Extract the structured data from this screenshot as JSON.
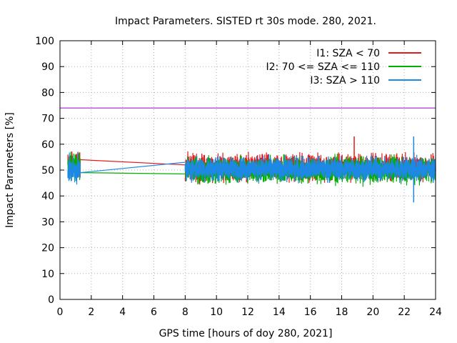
{
  "chart_data": {
    "type": "line",
    "title": "Impact Parameters. SISTED rt 30s mode. 280, 2021.",
    "xlabel": "GPS time [hours of doy 280, 2021]",
    "ylabel": "Impact Parameters [%]",
    "xlim": [
      0,
      24
    ],
    "ylim": [
      0,
      100
    ],
    "xticks": [
      0,
      2,
      4,
      6,
      8,
      10,
      12,
      14,
      16,
      18,
      20,
      22,
      24
    ],
    "yticks": [
      0,
      10,
      20,
      30,
      40,
      50,
      60,
      70,
      80,
      90,
      100
    ],
    "legend_position": "top-right",
    "reference_line": {
      "y": 74,
      "color": "#9400d3"
    },
    "series": [
      {
        "name": "I1: SZA < 70",
        "color": "#e41a1c",
        "segments": [
          {
            "x_start": 0.5,
            "x_end": 1.3,
            "center": 52,
            "amplitude": 5
          },
          {
            "x_start": 1.3,
            "x_end": 8.0,
            "trend": [
              54,
              52
            ]
          },
          {
            "x_start": 8.0,
            "x_end": 24.0,
            "center": 51,
            "amplitude": 5
          }
        ],
        "max_spike": {
          "x": 18.8,
          "y": 63
        }
      },
      {
        "name": "I2: 70 <= SZA <= 110",
        "color": "#00b000",
        "segments": [
          {
            "x_start": 0.5,
            "x_end": 1.3,
            "center": 51,
            "amplitude": 5
          },
          {
            "x_start": 1.3,
            "x_end": 8.0,
            "trend": [
              49,
              48.5
            ]
          },
          {
            "x_start": 8.0,
            "x_end": 24.0,
            "center": 50,
            "amplitude": 5
          }
        ]
      },
      {
        "name": "I3: SZA > 110",
        "color": "#1e88e5",
        "segments": [
          {
            "x_start": 0.5,
            "x_end": 1.3,
            "center": 50,
            "amplitude": 5
          },
          {
            "x_start": 1.3,
            "x_end": 8.0,
            "trend": [
              49,
              53
            ]
          },
          {
            "x_start": 8.0,
            "x_end": 24.0,
            "center": 50.5,
            "amplitude": 4.5
          }
        ],
        "max_spike": {
          "x": 22.6,
          "y": 63
        },
        "min_spike": {
          "x": 22.6,
          "y": 37.5
        }
      }
    ]
  }
}
